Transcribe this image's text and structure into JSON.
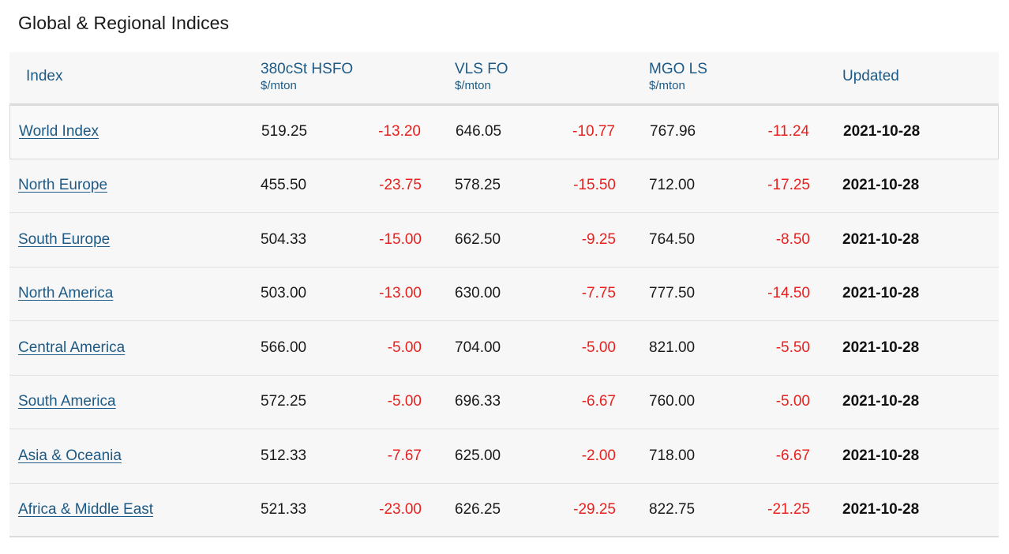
{
  "title": "Global & Regional Indices",
  "headers": {
    "index": "Index",
    "hsfo": "380cSt HSFO",
    "hsfo_unit": "$/mton",
    "vlsfo": "VLS FO",
    "vlsfo_unit": "$/mton",
    "mgo": "MGO LS",
    "mgo_unit": "$/mton",
    "updated": "Updated"
  },
  "rows": [
    {
      "name": "World Index",
      "hsfo": "519.25",
      "hsfo_chg": "-13.20",
      "vlsfo": "646.05",
      "vlsfo_chg": "-10.77",
      "mgo": "767.96",
      "mgo_chg": "-11.24",
      "updated": "2021-10-28"
    },
    {
      "name": "North Europe",
      "hsfo": "455.50",
      "hsfo_chg": "-23.75",
      "vlsfo": "578.25",
      "vlsfo_chg": "-15.50",
      "mgo": "712.00",
      "mgo_chg": "-17.25",
      "updated": "2021-10-28"
    },
    {
      "name": "South Europe",
      "hsfo": "504.33",
      "hsfo_chg": "-15.00",
      "vlsfo": "662.50",
      "vlsfo_chg": "-9.25",
      "mgo": "764.50",
      "mgo_chg": "-8.50",
      "updated": "2021-10-28"
    },
    {
      "name": "North America",
      "hsfo": "503.00",
      "hsfo_chg": "-13.00",
      "vlsfo": "630.00",
      "vlsfo_chg": "-7.75",
      "mgo": "777.50",
      "mgo_chg": "-14.50",
      "updated": "2021-10-28"
    },
    {
      "name": "Central America",
      "hsfo": "566.00",
      "hsfo_chg": "-5.00",
      "vlsfo": "704.00",
      "vlsfo_chg": "-5.00",
      "mgo": "821.00",
      "mgo_chg": "-5.50",
      "updated": "2021-10-28"
    },
    {
      "name": "South America",
      "hsfo": "572.25",
      "hsfo_chg": "-5.00",
      "vlsfo": "696.33",
      "vlsfo_chg": "-6.67",
      "mgo": "760.00",
      "mgo_chg": "-5.00",
      "updated": "2021-10-28"
    },
    {
      "name": "Asia & Oceania",
      "hsfo": "512.33",
      "hsfo_chg": "-7.67",
      "vlsfo": "625.00",
      "vlsfo_chg": "-2.00",
      "mgo": "718.00",
      "mgo_chg": "-6.67",
      "updated": "2021-10-28"
    },
    {
      "name": "Africa & Middle East",
      "hsfo": "521.33",
      "hsfo_chg": "-23.00",
      "vlsfo": "626.25",
      "vlsfo_chg": "-29.25",
      "mgo": "822.75",
      "mgo_chg": "-21.25",
      "updated": "2021-10-28"
    }
  ]
}
